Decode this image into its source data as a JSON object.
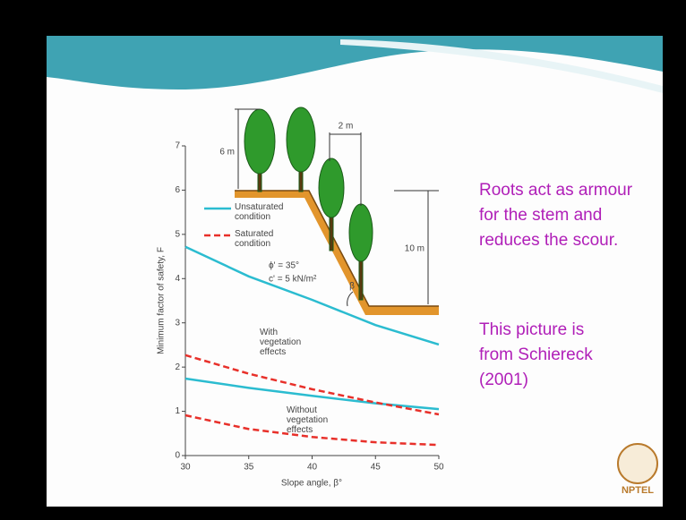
{
  "chart_data": {
    "type": "line",
    "x": [
      30,
      35,
      40,
      45,
      50
    ],
    "xlim": [
      30,
      50
    ],
    "xticks": [
      30,
      35,
      40,
      45,
      50
    ],
    "ylim": [
      0,
      7
    ],
    "yticks": [
      0,
      1,
      2,
      3,
      4,
      5,
      6,
      7
    ],
    "x_label": "Slope angle, β°",
    "y_label": "Minimum factor of safety, F",
    "series": [
      {
        "name": "Unsaturated condition",
        "color": "#2bbcd0",
        "dashed": false,
        "values_with_vegetation": [
          4.72,
          4.05,
          3.52,
          2.95,
          2.51
        ],
        "values_without_vegetation": [
          1.74,
          1.53,
          1.35,
          1.18,
          1.05
        ]
      },
      {
        "name": "Saturated condition",
        "color": "#e8302a",
        "dashed": true,
        "values_with_vegetation": [
          2.27,
          1.85,
          1.5,
          1.2,
          0.93
        ],
        "values_without_vegetation": [
          0.91,
          0.6,
          0.42,
          0.3,
          0.24
        ]
      }
    ],
    "annotations": {
      "with_vegetation": "With vegetation effects",
      "without_vegetation": "Without vegetation effects",
      "phi": "ϕ' = 35°",
      "cohesion": "c' = 5 kN/m²",
      "tree_height": "6 m",
      "spacing": "2 m",
      "slope_height": "10 m",
      "angle": "β"
    }
  },
  "slide": {
    "paragraphs": [
      "Roots act as armour for the stem and reduces the scour.",
      "This picture is from Schiereck (2001)"
    ],
    "logo": "NPTEL"
  }
}
